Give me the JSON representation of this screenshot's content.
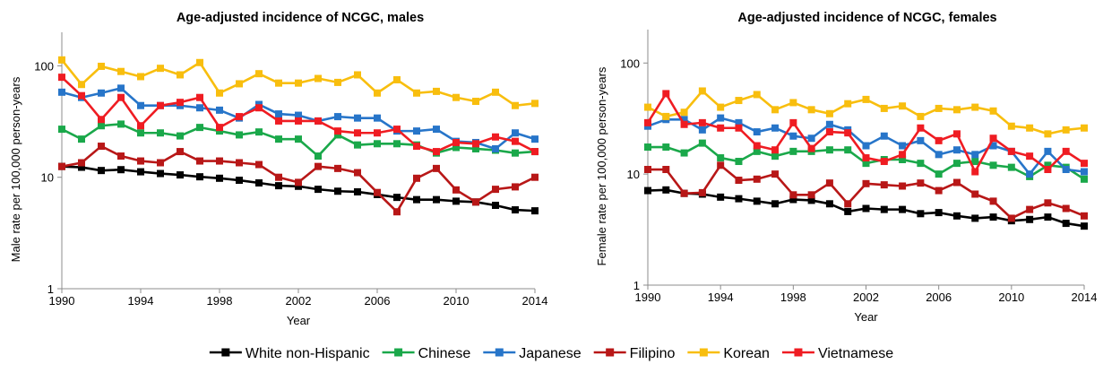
{
  "colors": {
    "White non-Hispanic": "#000000",
    "Chinese": "#1aa84a",
    "Japanese": "#2775c9",
    "Filipino": "#b81717",
    "Korean": "#f8be0e",
    "Vietnamese": "#ef1c22"
  },
  "legend": [
    "White non-Hispanic",
    "Chinese",
    "Japanese",
    "Filipino",
    "Korean",
    "Vietnamese"
  ],
  "chart_data": [
    {
      "type": "line",
      "title": "Age-adjusted incidence of NCGC, males",
      "xlabel": "Year",
      "ylabel": "Male rate per 100,000 person-years",
      "yscale": "log",
      "ylim": [
        1,
        200
      ],
      "xlim": [
        1990,
        2014
      ],
      "xticks": [
        "1990",
        "1994",
        "1998",
        "2002",
        "2006",
        "2010",
        "2014"
      ],
      "yticks": [
        "1",
        "10",
        "100"
      ],
      "x": [
        1990,
        1991,
        1992,
        1993,
        1994,
        1995,
        1996,
        1997,
        1998,
        1999,
        2000,
        2001,
        2002,
        2003,
        2004,
        2005,
        2006,
        2007,
        2008,
        2009,
        2010,
        2011,
        2012,
        2013,
        2014
      ],
      "series": [
        {
          "name": "White non-Hispanic",
          "values": [
            12.5,
            12.3,
            11.5,
            11.7,
            11.2,
            10.8,
            10.5,
            10.1,
            9.8,
            9.4,
            8.9,
            8.4,
            8.3,
            7.8,
            7.5,
            7.4,
            7.0,
            6.6,
            6.3,
            6.3,
            6.1,
            6.0,
            5.6,
            5.1,
            5.0
          ]
        },
        {
          "name": "Chinese",
          "values": [
            27,
            22,
            29,
            30,
            25,
            25,
            23.5,
            28,
            26,
            24,
            25.5,
            22,
            22,
            15.5,
            24,
            19.5,
            20,
            20,
            19.5,
            16.5,
            18.5,
            18,
            17.5,
            16.5,
            17
          ]
        },
        {
          "name": "Japanese",
          "values": [
            58,
            52,
            57,
            63,
            44,
            44,
            44,
            42,
            40,
            34,
            45,
            37,
            36,
            32,
            35,
            34,
            34,
            26,
            26,
            27,
            21,
            20.5,
            18,
            25,
            22
          ]
        },
        {
          "name": "Filipino",
          "values": [
            12.5,
            13.5,
            19,
            15.5,
            14,
            13.5,
            17,
            14,
            14,
            13.5,
            13,
            10,
            9,
            12.5,
            12,
            11,
            7.3,
            4.9,
            9.8,
            12,
            7.7,
            6,
            7.8,
            8.2,
            10
          ]
        },
        {
          "name": "Korean",
          "values": [
            113,
            68,
            99,
            89,
            80,
            95,
            83,
            107,
            57,
            69,
            85,
            70,
            70,
            77,
            71,
            83,
            57,
            75,
            57,
            59,
            52,
            48,
            58,
            44,
            46
          ]
        },
        {
          "name": "Vietnamese",
          "values": [
            79,
            54,
            33,
            52,
            29,
            44,
            47,
            52,
            28,
            35,
            42,
            32,
            32,
            32,
            26,
            25,
            25,
            27,
            19,
            17,
            20.5,
            20,
            23,
            21,
            17
          ]
        }
      ]
    },
    {
      "type": "line",
      "title": "Age-adjusted incidence of NCGC, females",
      "xlabel": "Year",
      "ylabel": "Female rate per 100,000 person-years",
      "yscale": "log",
      "ylim": [
        1,
        200
      ],
      "xlim": [
        1990,
        2014
      ],
      "xticks": [
        "1990",
        "1994",
        "1998",
        "2002",
        "2006",
        "2010",
        "2014"
      ],
      "yticks": [
        "1",
        "10",
        "100"
      ],
      "x": [
        1990,
        1991,
        1992,
        1993,
        1994,
        1995,
        1996,
        1997,
        1998,
        1999,
        2000,
        2001,
        2002,
        2003,
        2004,
        2005,
        2006,
        2007,
        2008,
        2009,
        2010,
        2011,
        2012,
        2013,
        2014
      ],
      "series": [
        {
          "name": "White non-Hispanic",
          "values": [
            7.1,
            7.2,
            6.7,
            6.6,
            6.2,
            6.0,
            5.7,
            5.4,
            5.9,
            5.8,
            5.4,
            4.6,
            4.9,
            4.8,
            4.8,
            4.4,
            4.5,
            4.2,
            4.0,
            4.1,
            3.8,
            3.9,
            4.1,
            3.6,
            3.4
          ]
        },
        {
          "name": "Chinese",
          "values": [
            17.5,
            17.5,
            15.5,
            19,
            14,
            13,
            16,
            14.5,
            16,
            16,
            16.5,
            16.5,
            12.5,
            13.5,
            13.5,
            12.5,
            10,
            12.5,
            13,
            12,
            11.5,
            9.5,
            12,
            11.5,
            9
          ]
        },
        {
          "name": "Japanese",
          "values": [
            27,
            31,
            31,
            25,
            32,
            29,
            24,
            26,
            22,
            21,
            28,
            25,
            18,
            22,
            18,
            20,
            15,
            16.5,
            15,
            18,
            16,
            10,
            16,
            11,
            10.5
          ]
        },
        {
          "name": "Filipino",
          "values": [
            11,
            11,
            6.7,
            6.8,
            12,
            8.8,
            9,
            10,
            6.5,
            6.5,
            8.3,
            5.4,
            8.2,
            8,
            7.8,
            8.3,
            7.1,
            8.4,
            6.6,
            5.7,
            4.0,
            4.8,
            5.5,
            4.9,
            4.2
          ]
        },
        {
          "name": "Korean",
          "values": [
            40,
            33,
            36,
            56,
            40,
            46,
            52,
            38,
            44,
            38,
            35,
            43,
            47,
            39,
            41,
            33,
            39,
            38,
            40,
            37,
            27,
            26,
            23,
            25,
            26
          ]
        },
        {
          "name": "Vietnamese",
          "values": [
            29,
            53,
            28,
            29,
            26,
            26,
            18,
            16.5,
            29,
            17,
            24,
            23.5,
            14,
            13,
            15,
            26,
            20,
            23,
            10.5,
            21,
            16,
            14.5,
            11,
            16,
            12.5
          ]
        }
      ]
    }
  ]
}
